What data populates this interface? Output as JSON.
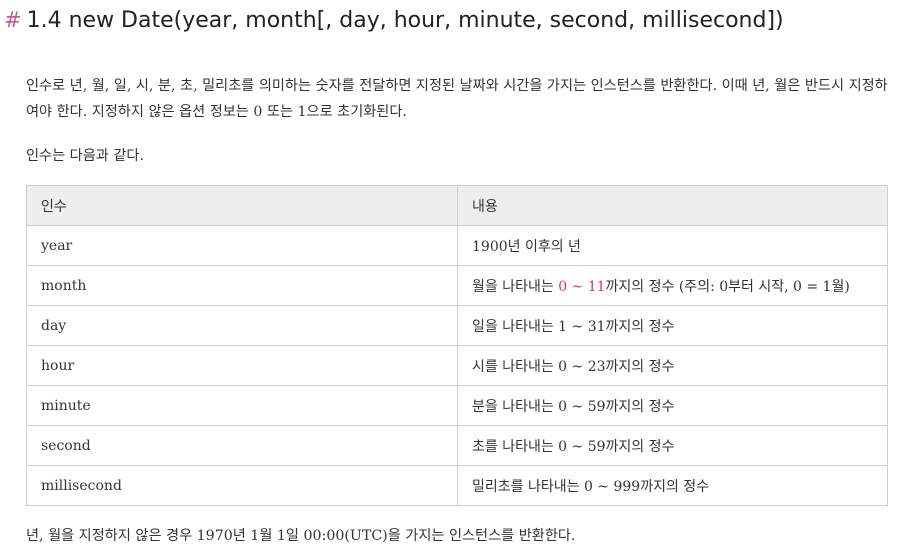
{
  "heading": {
    "hash": "#",
    "title": "1.4 new Date(year, month[, day, hour, minute, second, millisecond])"
  },
  "intro": "인수로 년, 월, 일, 시, 분, 초, 밀리초를 의미하는 숫자를 전달하면 지정된 날짜와 시간을 가지는 인스턴스를 반환한다. 이때 년, 월은 반드시 지정하여야 한다. 지정하지 않은 옵션 정보는 0 또는 1으로 초기화된다.",
  "args_intro": "인수는 다음과 같다.",
  "table": {
    "headers": [
      "인수",
      "내용"
    ],
    "rows": [
      {
        "arg": "year",
        "desc": "1900년 이후의 년"
      },
      {
        "arg": "month",
        "desc_before": "월을 나타내는 ",
        "desc_highlight": "0 ~ 11",
        "desc_after": "까지의 정수 (주의: 0부터 시작, 0 = 1월)"
      },
      {
        "arg": "day",
        "desc": "일을 나타내는 1 ~ 31까지의 정수"
      },
      {
        "arg": "hour",
        "desc": "시를 나타내는 0 ~ 23까지의 정수"
      },
      {
        "arg": "minute",
        "desc": "분을 나타내는 0 ~ 59까지의 정수"
      },
      {
        "arg": "second",
        "desc": "초를 나타내는 0 ~ 59까지의 정수"
      },
      {
        "arg": "millisecond",
        "desc": "밀리초를 나타내는 0 ~ 999까지의 정수"
      }
    ]
  },
  "footer": "년, 월을 지정하지 않은 경우 1970년 1월 1일 00:00(UTC)을 가지는 인스턴스를 반환한다.",
  "colors": {
    "hash": "#c25b8a",
    "highlight": "#e53935",
    "header_bg": "#eeeeee",
    "border": "#cfcfcf"
  }
}
